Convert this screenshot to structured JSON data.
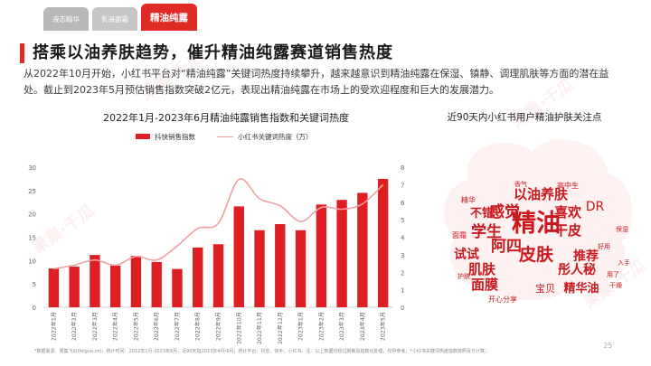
{
  "tabs": [
    {
      "label": "液态精华",
      "active": false
    },
    {
      "label": "乳液面霜",
      "active": false
    },
    {
      "label": "精油纯露",
      "active": true
    }
  ],
  "title": "搭乘以油养肤趋势，催升精油纯露赛道销售热度",
  "description": "从2022年10月开始，小红书平台对“精油纯露”关键词热度持续攀升，越来越意识到精油纯露在保湿、镇静、调理肌肤等方面的潜在益处。截止到2023年5月预估销售指数突破2亿元，表现出精油纯露在市场上的受欢迎程度和巨大的发展潜力。",
  "chart_title": "2022年1月-2023年6月精油纯露销售指数和关键词热度",
  "wordcloud_title": "近90天内小红书用户精油护肤关注点",
  "footer": "*数据来源：果集飞瓜(feigua.cn)，统计时间：2022年1月-2023年6月，近90天指2023年4月-6月；统计平台：抖音、快手、小红书。注：以上数据均经过脱敏及指数化处理，仅供参考；*小红书关键词热度指数按照百万计算；",
  "page_number": "25",
  "watermark": "果集·千瓜",
  "colors": {
    "accent": "#e02a26",
    "bar": "#dd1f24",
    "line": "#f2a0a2",
    "cloud": "#c9191e"
  },
  "chart_data": {
    "type": "bar",
    "categories": [
      "2022年1月",
      "2022年2月",
      "2022年3月",
      "2022年4月",
      "2022年5月",
      "2022年6月",
      "2022年7月",
      "2022年8月",
      "2022年9月",
      "2022年10月",
      "2022年11月",
      "2022年12月",
      "2023年1月",
      "2023年2月",
      "2023年3月",
      "2023年4月",
      "2023年5月"
    ],
    "series": [
      {
        "name": "抖快销售指数",
        "type": "bar",
        "axis": "left",
        "values": [
          8.3,
          8.7,
          11.2,
          8.9,
          11,
          9.7,
          8.2,
          12.8,
          13.5,
          21.6,
          16.5,
          17.8,
          16.5,
          22,
          23,
          24.5,
          27.5
        ]
      },
      {
        "name": "小红书关键词热度（万）",
        "type": "line",
        "axis": "right",
        "values": [
          2.2,
          2.4,
          2.7,
          2.4,
          2.9,
          2.7,
          3.5,
          4.5,
          4.8,
          7.3,
          6.2,
          5.8,
          4.9,
          5.7,
          5.6,
          5.9,
          7
        ]
      }
    ],
    "yleft": {
      "ticks": [
        0,
        5,
        10,
        15,
        20,
        25,
        30
      ],
      "lim": [
        0,
        30
      ]
    },
    "yright": {
      "ticks": [
        0,
        1,
        2,
        3,
        4,
        5,
        6,
        7,
        8
      ],
      "lim": [
        0,
        8
      ]
    },
    "legend": "top",
    "grid": false
  },
  "wordcloud": [
    {
      "text": "精油",
      "size": 27,
      "bold": true
    },
    {
      "text": "皮肤",
      "size": 19,
      "bold": true
    },
    {
      "text": "以油养肤",
      "size": 15,
      "bold": true
    },
    {
      "text": "感觉",
      "size": 17,
      "bold": true
    },
    {
      "text": "喜欢",
      "size": 15,
      "bold": true
    },
    {
      "text": "干皮",
      "size": 15,
      "bold": true
    },
    {
      "text": "学生",
      "size": 17,
      "bold": true
    },
    {
      "text": "阿四",
      "size": 17,
      "bold": true
    },
    {
      "text": "肌肤",
      "size": 15,
      "bold": true
    },
    {
      "text": "面膜",
      "size": 15,
      "bold": true
    },
    {
      "text": "试试",
      "size": 14,
      "bold": true
    },
    {
      "text": "推荐",
      "size": 14,
      "bold": true
    },
    {
      "text": "彤人秘",
      "size": 14,
      "bold": true
    },
    {
      "text": "精华油",
      "size": 13,
      "bold": true
    },
    {
      "text": "不错",
      "size": 13,
      "bold": true
    },
    {
      "text": "DR",
      "size": 14,
      "bold": false
    },
    {
      "text": "宝贝",
      "size": 11,
      "bold": false
    },
    {
      "text": "开心分享",
      "size": 8,
      "bold": false
    },
    {
      "text": "高中生",
      "size": 8,
      "bold": false
    },
    {
      "text": "精华",
      "size": 8,
      "bold": false
    },
    {
      "text": "香气",
      "size": 7,
      "bold": false
    },
    {
      "text": "面霜",
      "size": 8,
      "bold": false
    },
    {
      "text": "好用",
      "size": 7,
      "bold": false
    },
    {
      "text": "入手",
      "size": 7,
      "bold": false
    },
    {
      "text": "用了",
      "size": 7,
      "bold": false
    },
    {
      "text": "干燥",
      "size": 7,
      "bold": false
    },
    {
      "text": "护肤",
      "size": 7,
      "bold": false
    },
    {
      "text": "保湿",
      "size": 7,
      "bold": false
    }
  ]
}
